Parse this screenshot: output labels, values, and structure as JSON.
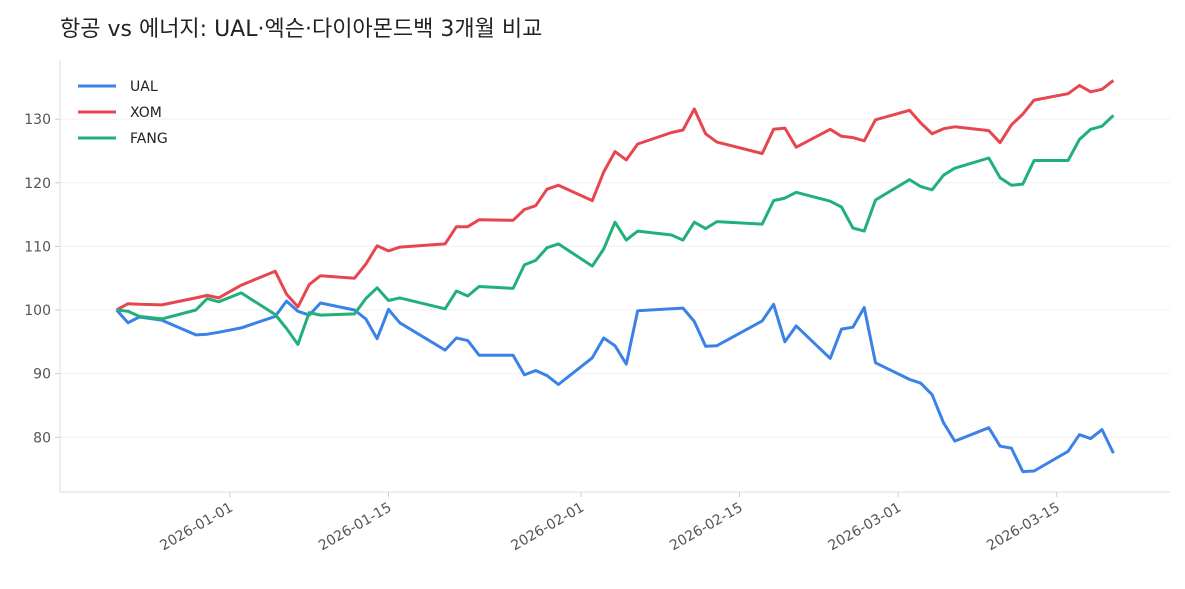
{
  "chart_data": {
    "type": "line",
    "title": "항공 vs 에너지: UAL·엑슨·다이아몬드백 3개월 비교",
    "x": [
      "2025-12-22",
      "2025-12-23",
      "2025-12-24",
      "2025-12-26",
      "2025-12-29",
      "2025-12-30",
      "2025-12-31",
      "2026-01-02",
      "2026-01-05",
      "2026-01-06",
      "2026-01-07",
      "2026-01-08",
      "2026-01-09",
      "2026-01-12",
      "2026-01-13",
      "2026-01-14",
      "2026-01-15",
      "2026-01-16",
      "2026-01-20",
      "2026-01-21",
      "2026-01-22",
      "2026-01-23",
      "2026-01-26",
      "2026-01-27",
      "2026-01-28",
      "2026-01-29",
      "2026-01-30",
      "2026-02-02",
      "2026-02-03",
      "2026-02-04",
      "2026-02-05",
      "2026-02-06",
      "2026-02-09",
      "2026-02-10",
      "2026-02-11",
      "2026-02-12",
      "2026-02-13",
      "2026-02-17",
      "2026-02-18",
      "2026-02-19",
      "2026-02-20",
      "2026-02-23",
      "2026-02-24",
      "2026-02-25",
      "2026-02-26",
      "2026-02-27",
      "2026-03-02",
      "2026-03-03",
      "2026-03-04",
      "2026-03-05",
      "2026-03-06",
      "2026-03-09",
      "2026-03-10",
      "2026-03-11",
      "2026-03-12",
      "2026-03-13",
      "2026-03-16",
      "2026-03-17",
      "2026-03-18",
      "2026-03-19",
      "2026-03-20"
    ],
    "series": [
      {
        "name": "UAL",
        "color": "#3b82e8",
        "values": [
          100,
          98,
          98.9,
          98.4,
          96.1,
          96.2,
          96.5,
          97.2,
          99,
          101.4,
          99.8,
          99.2,
          101.1,
          100,
          98.6,
          95.5,
          100.1,
          98,
          93.7,
          95.6,
          95.2,
          92.9,
          92.9,
          89.8,
          90.5,
          89.7,
          88.3,
          92.5,
          95.6,
          94.4,
          91.5,
          99.9,
          100.2,
          100.3,
          98.2,
          94.3,
          94.4,
          98.3,
          100.9,
          95,
          97.5,
          92.4,
          97,
          97.3,
          100.4,
          91.7,
          89.1,
          88.5,
          86.7,
          82.3,
          79.4,
          81.5,
          78.6,
          78.3,
          74.6,
          74.7,
          77.8,
          80.4,
          79.8,
          81.2,
          77.5
        ]
      },
      {
        "name": "XOM",
        "color": "#e8464f",
        "values": [
          100,
          101,
          100.9,
          100.8,
          101.9,
          102.3,
          101.9,
          103.9,
          106.1,
          102.5,
          100.5,
          104,
          105.4,
          105,
          107.2,
          110.1,
          109.3,
          109.9,
          110.4,
          113.1,
          113.1,
          114.2,
          114.1,
          115.8,
          116.4,
          119,
          119.6,
          117.2,
          121.7,
          124.9,
          123.6,
          126.1,
          127.9,
          128.3,
          131.6,
          127.7,
          126.4,
          124.6,
          128.4,
          128.6,
          125.6,
          128.4,
          127.3,
          127.1,
          126.6,
          129.9,
          131.4,
          129.4,
          127.7,
          128.5,
          128.8,
          128.2,
          126.3,
          129.1,
          130.8,
          133,
          134,
          135.3,
          134.3,
          134.7,
          136.1
        ]
      },
      {
        "name": "FANG",
        "color": "#22b07a",
        "values": [
          100,
          99.8,
          99,
          98.6,
          100,
          101.8,
          101.3,
          102.7,
          99.3,
          97.1,
          94.6,
          99.6,
          99.2,
          99.4,
          101.8,
          103.5,
          101.5,
          101.9,
          100.2,
          103,
          102.2,
          103.7,
          103.4,
          107.1,
          107.8,
          109.8,
          110.4,
          106.9,
          109.6,
          113.8,
          111,
          112.4,
          111.8,
          111,
          113.8,
          112.8,
          113.9,
          113.5,
          117.2,
          117.6,
          118.5,
          117.1,
          116.2,
          112.9,
          112.4,
          117.3,
          120.5,
          119.4,
          118.9,
          121.2,
          122.3,
          123.9,
          120.8,
          119.6,
          119.8,
          123.5,
          123.5,
          126.8,
          128.4,
          128.9,
          130.6
        ]
      }
    ],
    "xlim": [
      "2025-12-17",
      "2026-03-25"
    ],
    "xticks": [
      "2026-01-01",
      "2026-01-15",
      "2026-02-01",
      "2026-02-15",
      "2026-03-01",
      "2026-03-15"
    ],
    "ylim": [
      71.4,
      139.3
    ],
    "yticks": [
      80,
      90,
      100,
      110,
      120,
      130
    ],
    "grid": true,
    "legend": "upper-left"
  }
}
